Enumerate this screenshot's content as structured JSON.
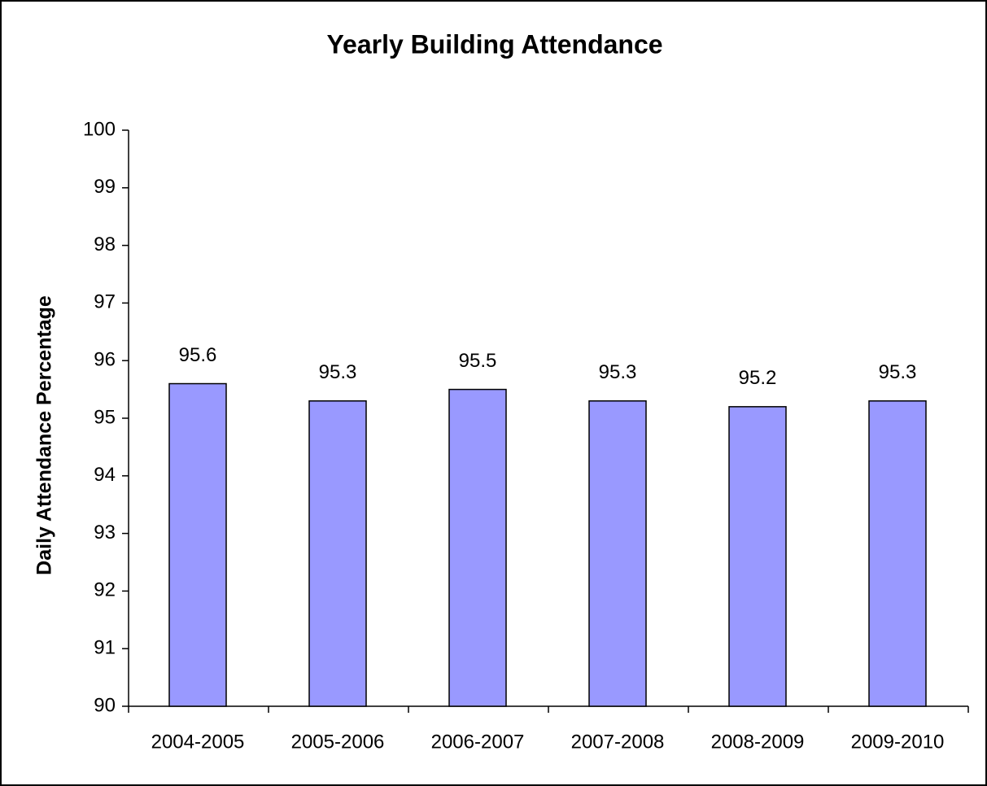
{
  "chart_data": {
    "type": "bar",
    "title": "Yearly Building Attendance",
    "y_label": "Daily Attendance Percentage",
    "categories": [
      "2004-2005",
      "2005-2006",
      "2006-2007",
      "2007-2008",
      "2008-2009",
      "2009-2010"
    ],
    "values": [
      95.6,
      95.3,
      95.5,
      95.3,
      95.2,
      95.3
    ],
    "color": "#9999ff",
    "ylim": [
      90,
      100
    ],
    "yticks": [
      90,
      91,
      92,
      93,
      94,
      95,
      96,
      97,
      98,
      99,
      100
    ],
    "grid": false
  }
}
